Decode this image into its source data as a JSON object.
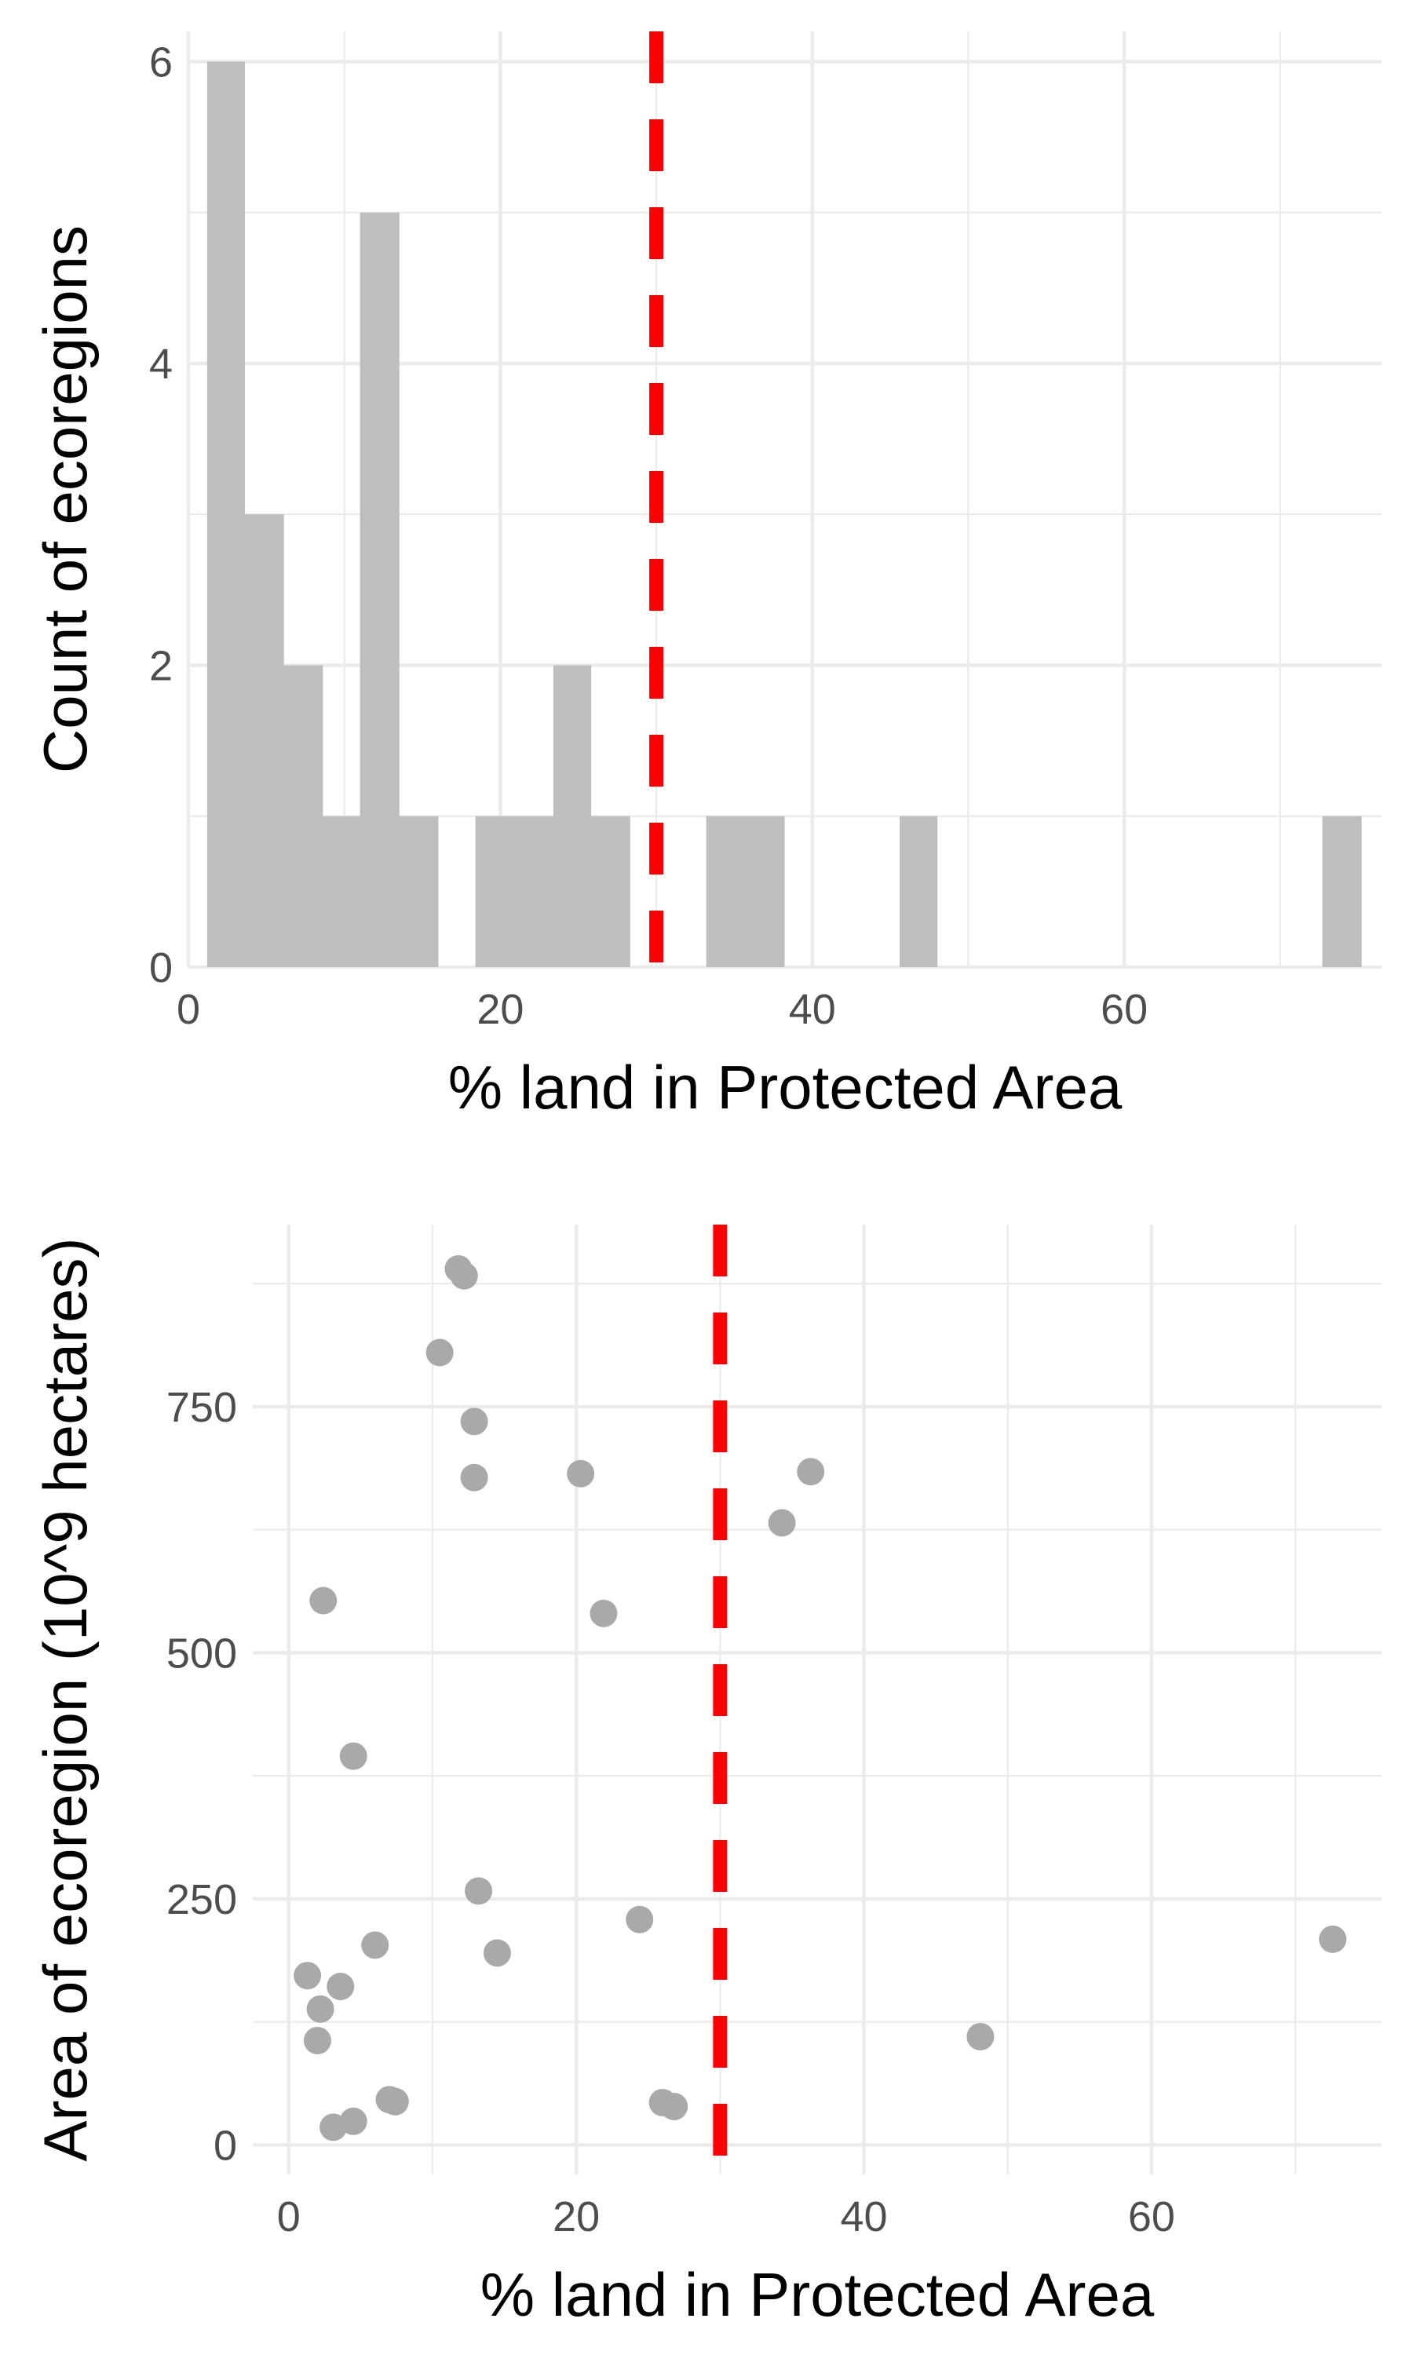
{
  "colors": {
    "bar_fill": "#bebebe",
    "point_fill": "#a9a9a9",
    "threshold_line": "#ff0000",
    "grid": "#ebebeb",
    "tick_text": "#4d4d4d",
    "title_text": "#000000"
  },
  "chart_data": [
    {
      "type": "bar",
      "subtype": "histogram",
      "xlabel": "% land in Protected Area",
      "ylabel": "Count of ecoregions",
      "xlim": [
        0,
        76.5
      ],
      "ylim": [
        0,
        6.2
      ],
      "x_ticks": [
        0,
        20,
        40,
        60
      ],
      "x_tick_labels": [
        "0",
        "20",
        "40",
        "60"
      ],
      "y_ticks": [
        0,
        2,
        4,
        6
      ],
      "y_tick_labels": [
        "0",
        "2",
        "4",
        "6"
      ],
      "grid": true,
      "bins": [
        {
          "x0": 1.2,
          "x1": 3.6,
          "count": 6
        },
        {
          "x0": 3.6,
          "x1": 6.1,
          "count": 3
        },
        {
          "x0": 6.1,
          "x1": 8.6,
          "count": 2
        },
        {
          "x0": 8.6,
          "x1": 11.0,
          "count": 1
        },
        {
          "x0": 11.0,
          "x1": 13.5,
          "count": 5
        },
        {
          "x0": 13.5,
          "x1": 16.0,
          "count": 1
        },
        {
          "x0": 16.0,
          "x1": 18.4,
          "count": 0
        },
        {
          "x0": 18.4,
          "x1": 20.9,
          "count": 1
        },
        {
          "x0": 20.9,
          "x1": 23.4,
          "count": 1
        },
        {
          "x0": 23.4,
          "x1": 25.8,
          "count": 2
        },
        {
          "x0": 25.8,
          "x1": 28.3,
          "count": 1
        },
        {
          "x0": 28.3,
          "x1": 30.8,
          "count": 0
        },
        {
          "x0": 30.8,
          "x1": 33.2,
          "count": 0
        },
        {
          "x0": 33.2,
          "x1": 35.7,
          "count": 1
        },
        {
          "x0": 35.7,
          "x1": 38.2,
          "count": 1
        },
        {
          "x0": 38.2,
          "x1": 40.6,
          "count": 0
        },
        {
          "x0": 40.6,
          "x1": 43.1,
          "count": 0
        },
        {
          "x0": 43.1,
          "x1": 45.6,
          "count": 0
        },
        {
          "x0": 45.6,
          "x1": 48.0,
          "count": 1
        },
        {
          "x0": 48.0,
          "x1": 50.5,
          "count": 0
        },
        {
          "x0": 50.5,
          "x1": 53.0,
          "count": 0
        },
        {
          "x0": 53.0,
          "x1": 55.4,
          "count": 0
        },
        {
          "x0": 55.4,
          "x1": 57.9,
          "count": 0
        },
        {
          "x0": 57.9,
          "x1": 60.4,
          "count": 0
        },
        {
          "x0": 60.4,
          "x1": 62.8,
          "count": 0
        },
        {
          "x0": 62.8,
          "x1": 65.3,
          "count": 0
        },
        {
          "x0": 65.3,
          "x1": 67.8,
          "count": 0
        },
        {
          "x0": 67.8,
          "x1": 70.2,
          "count": 0
        },
        {
          "x0": 70.2,
          "x1": 72.7,
          "count": 0
        },
        {
          "x0": 72.7,
          "x1": 75.2,
          "count": 1
        }
      ],
      "threshold": {
        "x": 30,
        "style": "dashed"
      }
    },
    {
      "type": "scatter",
      "xlabel": "% land in Protected Area",
      "ylabel": "Area of ecoregion (10^9 hectares)",
      "xlim": [
        -2.5,
        76.0
      ],
      "ylim": [
        -30,
        935
      ],
      "x_ticks": [
        0,
        20,
        40,
        60
      ],
      "x_tick_labels": [
        "0",
        "20",
        "40",
        "60"
      ],
      "y_ticks": [
        0,
        250,
        500,
        750
      ],
      "y_tick_labels": [
        "0",
        "250",
        "500",
        "750"
      ],
      "grid": true,
      "points": [
        {
          "x": 11.8,
          "y": 890
        },
        {
          "x": 12.2,
          "y": 883
        },
        {
          "x": 10.5,
          "y": 805
        },
        {
          "x": 12.9,
          "y": 735
        },
        {
          "x": 12.9,
          "y": 678
        },
        {
          "x": 20.3,
          "y": 682
        },
        {
          "x": 36.3,
          "y": 684
        },
        {
          "x": 34.3,
          "y": 632
        },
        {
          "x": 2.4,
          "y": 553
        },
        {
          "x": 21.9,
          "y": 540
        },
        {
          "x": 4.5,
          "y": 395
        },
        {
          "x": 13.2,
          "y": 258
        },
        {
          "x": 24.4,
          "y": 229
        },
        {
          "x": 6.0,
          "y": 203
        },
        {
          "x": 14.5,
          "y": 195
        },
        {
          "x": 1.3,
          "y": 172
        },
        {
          "x": 3.6,
          "y": 161
        },
        {
          "x": 2.2,
          "y": 138
        },
        {
          "x": 2.0,
          "y": 106
        },
        {
          "x": 48.1,
          "y": 110
        },
        {
          "x": 72.6,
          "y": 209
        },
        {
          "x": 7.0,
          "y": 46
        },
        {
          "x": 7.4,
          "y": 44
        },
        {
          "x": 26.0,
          "y": 43
        },
        {
          "x": 26.8,
          "y": 39
        },
        {
          "x": 4.5,
          "y": 24
        },
        {
          "x": 3.1,
          "y": 18
        }
      ],
      "threshold": {
        "x": 30,
        "style": "dashed"
      }
    }
  ]
}
